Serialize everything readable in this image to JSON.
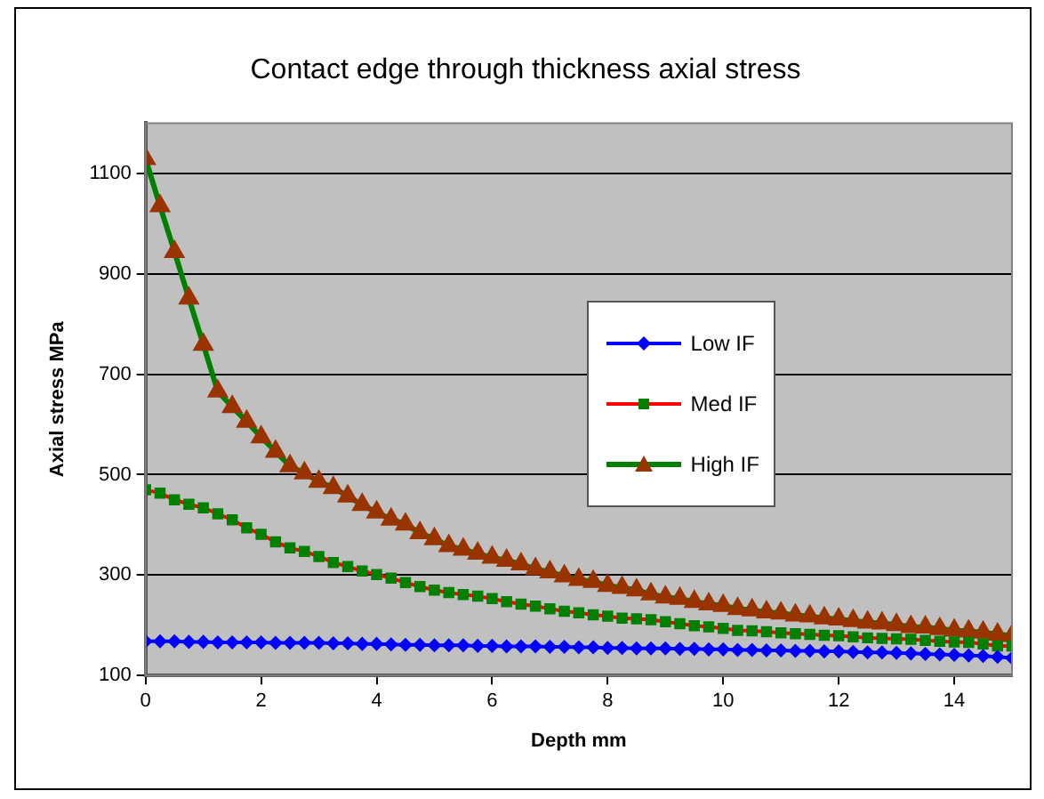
{
  "chart_data": {
    "type": "line",
    "title": "Contact edge through thickness axial stress",
    "xlabel": "Depth mm",
    "ylabel": "Axial stress MPa",
    "x": [
      0,
      0.25,
      0.5,
      0.75,
      1,
      1.25,
      1.5,
      1.75,
      2,
      2.25,
      2.5,
      2.75,
      3,
      3.25,
      3.5,
      3.75,
      4,
      4.25,
      4.5,
      4.75,
      5,
      5.25,
      5.5,
      5.75,
      6,
      6.25,
      6.5,
      6.75,
      7,
      7.25,
      7.5,
      7.75,
      8,
      8.25,
      8.5,
      8.75,
      9,
      9.25,
      9.5,
      9.75,
      10,
      10.25,
      10.5,
      10.75,
      11,
      11.25,
      11.5,
      11.75,
      12,
      12.25,
      12.5,
      12.75,
      13,
      13.25,
      13.5,
      13.75,
      14,
      14.25,
      14.5,
      14.75,
      15
    ],
    "xlim": [
      0,
      15
    ],
    "xticks": [
      0,
      2,
      4,
      6,
      8,
      10,
      12,
      14
    ],
    "ylim": [
      100,
      1200
    ],
    "yticks": [
      100,
      300,
      500,
      700,
      900,
      1100
    ],
    "grid": "y",
    "legend": "right",
    "series": [
      {
        "name": "Low IF",
        "color": "#0000ff",
        "marker": "diamond",
        "values": [
          168,
          168,
          168,
          167,
          167,
          166,
          166,
          166,
          166,
          165,
          165,
          165,
          165,
          164,
          164,
          163,
          163,
          162,
          161,
          161,
          160,
          160,
          160,
          159,
          159,
          158,
          158,
          158,
          157,
          157,
          156,
          156,
          155,
          155,
          154,
          154,
          154,
          153,
          153,
          152,
          152,
          151,
          151,
          150,
          150,
          149,
          149,
          148,
          148,
          147,
          146,
          146,
          145,
          144,
          143,
          142,
          141,
          140,
          139,
          137,
          135
        ]
      },
      {
        "name": "Med IF",
        "color": "#ff0000",
        "marker": "square",
        "colors": [
          "#008000",
          "#008000",
          "#008000",
          "#008000",
          "#008000",
          "#008000",
          "#008000",
          "#008000",
          "#008000",
          "#008000",
          "#008000",
          "#008000",
          "#008000",
          "#008000",
          "#008000",
          "#008000",
          "#008000",
          "#008000",
          "#008000",
          "#008000",
          "#008000",
          "#008000",
          "#008000",
          "#008000",
          "#008000",
          "#008000",
          "#008000",
          "#008000",
          "#008000",
          "#008000",
          "#008000",
          "#008000",
          "#008000",
          "#008000",
          "#008000",
          "#008000",
          "#008000",
          "#008000",
          "#008000",
          "#008000",
          "#008000",
          "#008000",
          "#008000",
          "#008000",
          "#008000",
          "#008000",
          "#008000",
          "#008000",
          "#008000",
          "#008000",
          "#008000",
          "#008000",
          "#008000",
          "#008000",
          "#008000",
          "#008000",
          "#008000",
          "#008000",
          "#008000",
          "#008000",
          "#008000"
        ],
        "values": [
          470,
          463,
          450,
          441,
          434,
          422,
          410,
          394,
          381,
          366,
          354,
          347,
          337,
          325,
          317,
          308,
          301,
          294,
          285,
          277,
          270,
          265,
          261,
          258,
          253,
          247,
          242,
          238,
          233,
          228,
          225,
          221,
          218,
          214,
          213,
          211,
          207,
          203,
          199,
          197,
          194,
          190,
          189,
          187,
          185,
          183,
          182,
          180,
          179,
          177,
          175,
          174,
          173,
          172,
          170,
          168,
          167,
          166,
          163,
          159,
          159
        ]
      },
      {
        "name": "High IF",
        "color": "#008000",
        "marker": "triangle",
        "colors": [
          "#993300",
          "#993300",
          "#993300",
          "#993300",
          "#993300",
          "#993300",
          "#993300",
          "#993300",
          "#993300",
          "#993300",
          "#993300",
          "#993300",
          "#993300",
          "#993300",
          "#993300",
          "#993300",
          "#993300",
          "#993300",
          "#993300",
          "#993300",
          "#993300",
          "#993300",
          "#993300",
          "#993300",
          "#993300",
          "#993300",
          "#993300",
          "#993300",
          "#993300",
          "#993300",
          "#993300",
          "#993300",
          "#993300",
          "#993300",
          "#993300",
          "#993300",
          "#993300",
          "#993300",
          "#993300",
          "#993300",
          "#993300",
          "#993300",
          "#993300",
          "#993300",
          "#993300",
          "#993300",
          "#993300",
          "#993300",
          "#993300",
          "#993300",
          "#993300",
          "#993300",
          "#993300",
          "#993300",
          "#993300",
          "#993300",
          "#993300",
          "#993300",
          "#993300",
          "#993300",
          "#993300"
        ],
        "values": [
          1129,
          1035,
          944,
          851,
          759,
          666,
          635,
          606,
          575,
          546,
          517,
          503,
          486,
          474,
          457,
          440,
          425,
          411,
          401,
          384,
          372,
          358,
          351,
          343,
          335,
          329,
          322,
          312,
          306,
          298,
          291,
          287,
          279,
          275,
          270,
          262,
          256,
          253,
          247,
          242,
          239,
          233,
          230,
          226,
          224,
          220,
          218,
          214,
          212,
          209,
          206,
          204,
          201,
          197,
          196,
          193,
          190,
          188,
          186,
          182,
          179
        ]
      }
    ]
  }
}
